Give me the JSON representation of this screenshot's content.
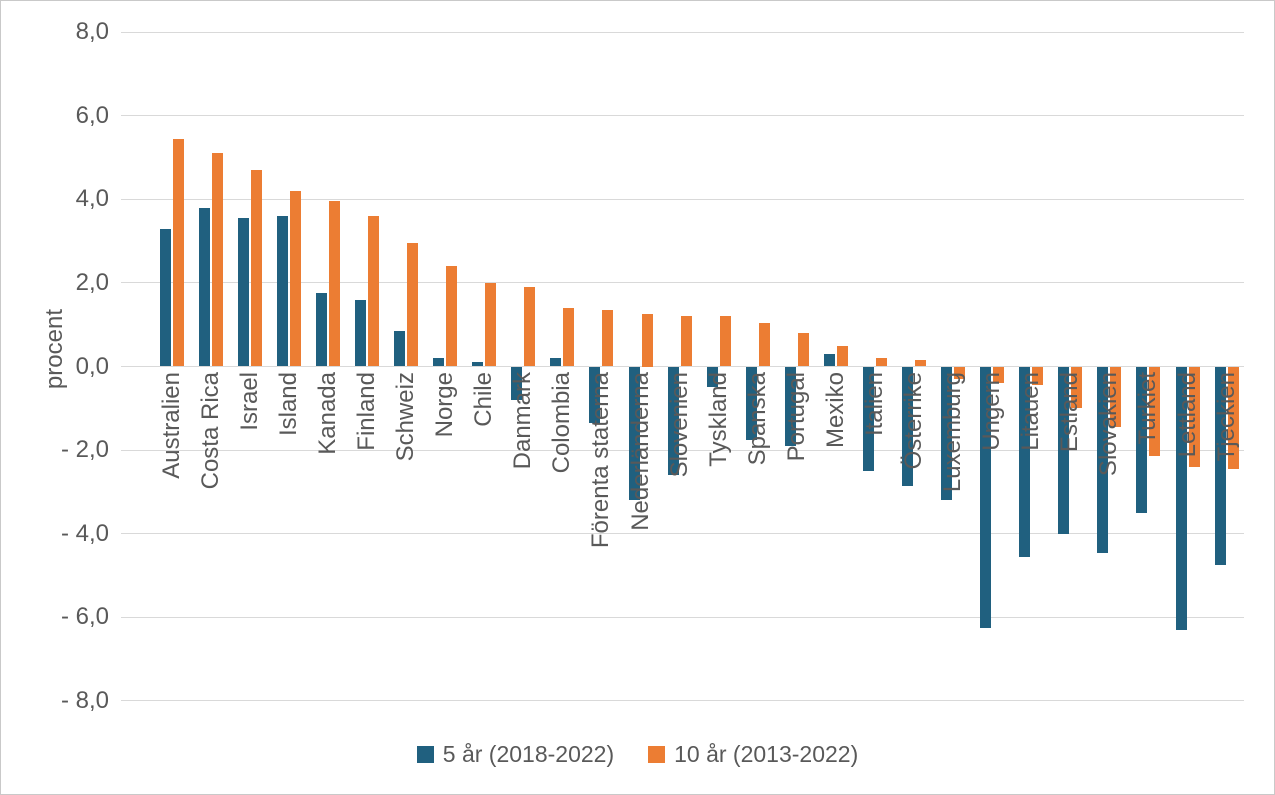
{
  "chart_data": {
    "type": "bar",
    "title": "",
    "xlabel": "",
    "ylabel": "procent",
    "ylim": [
      -8,
      8
    ],
    "yticks": [
      8,
      6,
      4,
      2,
      0,
      -2,
      -4,
      -6,
      -8
    ],
    "ytick_labels": [
      "8,0",
      "6,0",
      "4,0",
      "2,0",
      "0,0",
      "- 2,0",
      "- 4,0",
      "- 6,0",
      "- 8,0"
    ],
    "grid": true,
    "legend_position": "bottom-center",
    "categories": [
      "Australien",
      "Costa Rica",
      "Israel",
      "Island",
      "Kanada",
      "Finland",
      "Schweiz",
      "Norge",
      "Chile",
      "Danmark",
      "Colombia",
      "Förenta staterna",
      "Nederländerna",
      "Slovenien",
      "Tyskland",
      "Spanska",
      "Portugal",
      "Mexiko",
      "Italien",
      "Österrike",
      "Luxemburg",
      "Ungern",
      "Litauen",
      "Estland",
      "Slovakien",
      "Turkiet",
      "Lettland",
      "Tjeckien"
    ],
    "series": [
      {
        "name": "5 år (2018-2022)",
        "color": "#20607F",
        "values": [
          3.3,
          3.8,
          3.55,
          3.6,
          1.75,
          1.6,
          0.85,
          0.2,
          0.1,
          -0.8,
          0.2,
          -1.35,
          -3.2,
          -2.6,
          -0.5,
          -1.75,
          -1.9,
          0.3,
          -2.5,
          -2.85,
          -3.2,
          -6.25,
          -4.55,
          -4.0,
          -4.45,
          -3.5,
          -6.3,
          -4.75
        ]
      },
      {
        "name": "10 år (2013-2022)",
        "color": "#EC7D33",
        "values": [
          5.45,
          5.1,
          4.7,
          4.2,
          3.95,
          3.6,
          2.95,
          2.4,
          2.0,
          1.9,
          1.4,
          1.35,
          1.25,
          1.2,
          1.2,
          1.05,
          0.8,
          0.5,
          0.2,
          0.15,
          -0.3,
          -0.4,
          -0.45,
          -1.0,
          -1.45,
          -2.15,
          -2.4,
          -2.45
        ]
      }
    ],
    "colors": {
      "grid": "#D9D9D9",
      "text": "#595959",
      "background": "#FFFFFF"
    }
  }
}
